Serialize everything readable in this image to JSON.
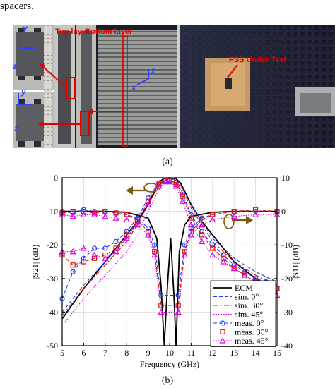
{
  "top_text": "spacers.",
  "figure_a": {
    "caption": "(a)",
    "labels": {
      "top_layer": "Top layer",
      "bottom_layer": "Bottom layer",
      "fss": "FSS Under Test"
    },
    "axes": {
      "y1": "y",
      "z1": "z",
      "y2": "y",
      "z2": "z",
      "z3": "z",
      "x3": "x"
    }
  },
  "figure_b": {
    "caption": "(b)"
  },
  "chart_data": {
    "type": "line",
    "xlabel": "Frequency (GHz)",
    "ylabel_left": "|S21| (dB)",
    "ylabel_right": "|S11| (dB)",
    "xlim": [
      5,
      15
    ],
    "ylim_left": [
      -50,
      0
    ],
    "ylim_right": [
      -40,
      10
    ],
    "x_ticks": [
      5,
      6,
      7,
      8,
      9,
      10,
      11,
      12,
      13,
      14,
      15
    ],
    "y_ticks_left": [
      0,
      -10,
      -20,
      -30,
      -40,
      -50
    ],
    "y_ticks_right": [
      10,
      0,
      -10,
      -20,
      -30,
      -40
    ],
    "legend_position": "bottom-right",
    "series": [
      {
        "name": "ECM",
        "color": "#000000",
        "style": "solid",
        "marker": "",
        "axis": "left",
        "x": [
          5,
          6,
          7,
          8,
          8.5,
          9,
          9.3,
          9.5,
          9.7,
          10,
          10.3,
          10.5,
          10.7,
          11,
          11.5,
          12,
          13,
          14,
          15
        ],
        "y": [
          -42,
          -33,
          -25,
          -17,
          -13,
          -8,
          -4,
          -1.5,
          -0.3,
          0,
          -0.3,
          -1.5,
          -4,
          -8,
          -13,
          -17,
          -25,
          -30,
          -34
        ]
      },
      {
        "name": "ECM",
        "color": "#000000",
        "style": "solid",
        "marker": "",
        "axis": "right",
        "nolegend": true,
        "x": [
          5,
          7,
          8,
          9,
          9.4,
          9.6,
          9.75,
          9.9,
          10.05,
          10.2,
          10.3,
          10.45,
          10.7,
          11,
          12,
          13,
          15
        ],
        "y": [
          0,
          0,
          -0.3,
          -2,
          -8,
          -22,
          -40,
          -22,
          -8,
          -25,
          -40,
          -12,
          -4,
          -1.5,
          -0.3,
          0,
          0
        ]
      },
      {
        "name": "sim. 0°",
        "color": "#1f3fff",
        "style": "dash",
        "marker": "",
        "axis": "left",
        "x": [
          5,
          6,
          7,
          8,
          8.5,
          9,
          9.5,
          9.8,
          10,
          10.3,
          10.6,
          11,
          11.5,
          12,
          13,
          14,
          15
        ],
        "y": [
          -40,
          -32,
          -25,
          -18,
          -13,
          -7,
          -2,
          -0.5,
          -0.3,
          -0.6,
          -3,
          -8,
          -13,
          -18,
          -24,
          -28,
          -31
        ]
      },
      {
        "name": "sim. 30°",
        "color": "#e01010",
        "style": "dashdot",
        "marker": "",
        "axis": "left",
        "x": [
          5,
          6,
          7,
          8,
          8.5,
          9,
          9.5,
          9.8,
          10,
          10.3,
          10.6,
          11,
          11.5,
          12,
          13,
          14,
          15
        ],
        "y": [
          -41,
          -33,
          -26,
          -19,
          -14,
          -8,
          -2.5,
          -0.6,
          -0.4,
          -0.8,
          -3.5,
          -9,
          -14,
          -19,
          -25,
          -29,
          -32
        ]
      },
      {
        "name": "sim. 45°",
        "color": "#e000e0",
        "style": "dot",
        "marker": "",
        "axis": "left",
        "x": [
          5,
          6,
          7,
          8,
          8.5,
          9,
          9.5,
          9.8,
          10,
          10.3,
          10.6,
          11,
          11.5,
          12,
          13,
          14,
          15
        ],
        "y": [
          -44,
          -36,
          -29,
          -22,
          -17,
          -10,
          -3.5,
          -1,
          -0.6,
          -1.2,
          -4.5,
          -11,
          -16,
          -21,
          -27,
          -31,
          -34
        ]
      },
      {
        "name": "meas. 0°",
        "color": "#1f3fff",
        "style": "dash",
        "marker": "circle",
        "axis": "left",
        "x": [
          5,
          5.5,
          6,
          6.5,
          7,
          7.5,
          8,
          8.5,
          9,
          9.5,
          9.8,
          10,
          10.3,
          10.6,
          11,
          11.5,
          12,
          12.5,
          13,
          13.5,
          14,
          14.5,
          15
        ],
        "y": [
          -36,
          -28,
          -24,
          -21,
          -21,
          -19,
          -16,
          -12,
          -6,
          -1.5,
          -0.8,
          -0.8,
          -1.5,
          -5,
          -11,
          -16,
          -20,
          -23,
          -26,
          -28,
          -30,
          -31,
          -33
        ]
      },
      {
        "name": "meas. 30°",
        "color": "#e01010",
        "style": "dash",
        "marker": "square",
        "axis": "left",
        "x": [
          5,
          5.5,
          6,
          6.5,
          7,
          7.5,
          8,
          8.5,
          9,
          9.5,
          9.8,
          10,
          10.3,
          10.6,
          11,
          11.5,
          12,
          12.5,
          13,
          13.5,
          14,
          14.5,
          15
        ],
        "y": [
          -23,
          -26,
          -25,
          -24,
          -23,
          -21,
          -17,
          -13,
          -7,
          -2,
          -1,
          -1,
          -2,
          -5.5,
          -12,
          -17,
          -21,
          -24,
          -27,
          -29,
          -31,
          -32,
          -33
        ]
      },
      {
        "name": "meas. 45°",
        "color": "#e000e0",
        "style": "dot",
        "marker": "triangle",
        "axis": "left",
        "x": [
          5,
          5.5,
          6,
          6.5,
          7,
          7.5,
          8,
          8.5,
          9,
          9.5,
          9.8,
          10,
          10.3,
          10.6,
          11,
          11.5,
          12,
          12.5,
          13,
          13.5,
          14,
          14.5,
          15
        ],
        "y": [
          -22,
          -22,
          -21,
          -23,
          -24,
          -22,
          -18,
          -14,
          -8,
          -2.5,
          -1.2,
          -1.2,
          -2.5,
          -7,
          -14,
          -19,
          -23,
          -25,
          -27,
          -29,
          -31,
          -33,
          -35
        ]
      },
      {
        "name": "meas. 0°",
        "color": "#1f3fff",
        "style": "dash",
        "marker": "circle",
        "axis": "right",
        "nolegend": true,
        "x": [
          5,
          5.5,
          6,
          6.5,
          7,
          7.5,
          8,
          8.5,
          9,
          9.3,
          9.6,
          10.4,
          10.7,
          11,
          11.5,
          12,
          13,
          14,
          15
        ],
        "y": [
          0,
          -0.5,
          0.5,
          0,
          0,
          -0.5,
          -1,
          -2,
          -5,
          -10,
          -25,
          -25,
          -10,
          -5,
          -2,
          -1,
          0,
          0,
          0
        ]
      },
      {
        "name": "meas. 30°",
        "color": "#e01010",
        "style": "dash",
        "marker": "square",
        "axis": "right",
        "nolegend": true,
        "x": [
          5,
          5.5,
          6,
          6.5,
          7,
          7.5,
          8,
          8.5,
          9,
          9.3,
          9.6,
          10.4,
          10.7,
          11,
          11.5,
          12,
          13,
          14,
          15
        ],
        "y": [
          -0.5,
          0,
          0,
          -0.5,
          0,
          -0.5,
          -1,
          -2.5,
          -6,
          -12,
          -28,
          -28,
          -12,
          -6,
          -2.5,
          -1,
          0,
          0.5,
          0
        ]
      },
      {
        "name": "meas. 45°",
        "color": "#e000e0",
        "style": "dot",
        "marker": "triangle",
        "axis": "right",
        "nolegend": true,
        "x": [
          5,
          5.5,
          6,
          6.5,
          7,
          7.5,
          8,
          8.5,
          9,
          9.3,
          9.6,
          10.4,
          10.7,
          11,
          11.5,
          12,
          13,
          14,
          15
        ],
        "y": [
          -1,
          -1.5,
          -1,
          -1,
          -1.5,
          -2,
          -2.5,
          -4,
          -7,
          -13,
          -30,
          -30,
          -13,
          -7,
          -4,
          -2.5,
          -1.5,
          -1,
          -1
        ]
      }
    ]
  }
}
